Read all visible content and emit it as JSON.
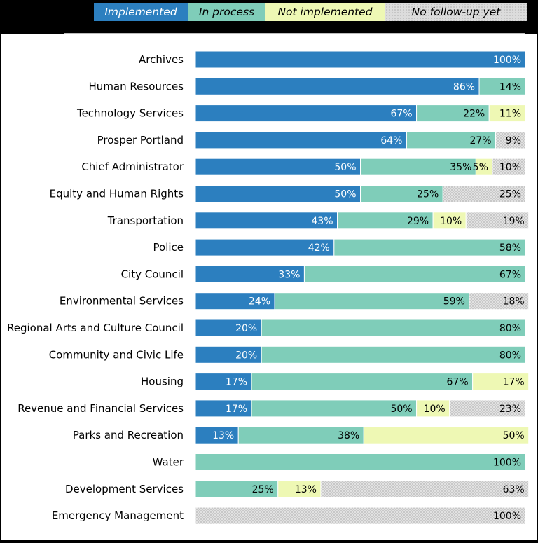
{
  "colors": {
    "implemented": "#2c7fbf",
    "in_process": "#7fcdb9",
    "not_implemented": "#eef8b4",
    "no_follow_up": "#dcdcdc"
  },
  "legend": {
    "items": [
      {
        "key": "implemented",
        "label": "Implemented"
      },
      {
        "key": "in_process",
        "label": "In process"
      },
      {
        "key": "not_implemented",
        "label": "Not implemented"
      },
      {
        "key": "no_follow_up",
        "label": "No follow-up yet"
      }
    ]
  },
  "chart_data": {
    "type": "bar",
    "orientation": "horizontal",
    "stacked": true,
    "xlim": [
      0,
      100
    ],
    "grid": false,
    "legend_placement": "top",
    "categories": [
      "Archives",
      "Human Resources",
      "Technology Services",
      "Prosper Portland",
      "Chief Administrator",
      "Equity and Human Rights",
      "Transportation",
      "Police",
      "City Council",
      "Environmental Services",
      "Regional Arts and Culture Council",
      "Community and Civic Life",
      "Housing",
      "Revenue and Financial Services",
      "Parks and Recreation",
      "Water",
      "Development Services",
      "Emergency Management"
    ],
    "series": [
      {
        "name": "Implemented",
        "values": [
          100,
          86,
          67,
          64,
          50,
          50,
          43,
          42,
          33,
          24,
          20,
          20,
          17,
          17,
          13,
          0,
          0,
          0
        ]
      },
      {
        "name": "In process",
        "values": [
          0,
          14,
          22,
          27,
          35,
          25,
          29,
          58,
          67,
          59,
          80,
          80,
          67,
          50,
          38,
          100,
          25,
          0
        ]
      },
      {
        "name": "Not implemented",
        "values": [
          0,
          0,
          11,
          0,
          5,
          0,
          10,
          0,
          0,
          0,
          0,
          0,
          17,
          10,
          50,
          0,
          13,
          0
        ]
      },
      {
        "name": "No follow-up yet",
        "values": [
          0,
          0,
          0,
          9,
          10,
          25,
          19,
          0,
          0,
          18,
          0,
          0,
          0,
          23,
          0,
          0,
          63,
          100
        ]
      }
    ]
  }
}
